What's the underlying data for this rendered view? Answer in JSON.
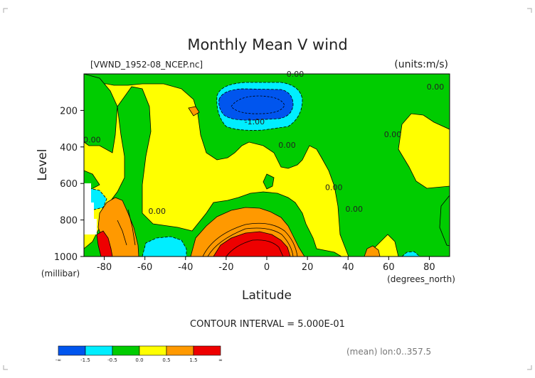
{
  "chart_data": {
    "type": "contour",
    "title": "Monthly Mean V wind",
    "dataset": "[VWND_1952-08_NCEP.nc]",
    "units": "(units:m/s)",
    "xlabel": "Latitude",
    "xunits": "(degrees_north)",
    "ylabel": "Level",
    "yunits": "(millibar)",
    "xlim": [
      -90,
      90
    ],
    "ylim": [
      1000,
      0
    ],
    "x_ticks": [
      -80,
      -60,
      -40,
      -20,
      0,
      20,
      40,
      60,
      80
    ],
    "y_ticks": [
      200,
      400,
      600,
      800,
      1000
    ],
    "contour_interval_text": "CONTOUR INTERVAL = 5.000E-01",
    "mean_text": "(mean) lon:0..357.5",
    "contour_labels": [
      {
        "text": "0.00",
        "lat": 14,
        "level": 0
      },
      {
        "text": "0.00",
        "lat": 83,
        "level": 70
      },
      {
        "text": "0.00",
        "lat": -86,
        "level": 360
      },
      {
        "text": "0.00",
        "lat": 10,
        "level": 390
      },
      {
        "text": "0.00",
        "lat": 62,
        "level": 330
      },
      {
        "text": "0.00",
        "lat": 33,
        "level": 620
      },
      {
        "text": "0.00",
        "lat": 43,
        "level": 740
      },
      {
        "text": "0.00",
        "lat": -54,
        "level": 750
      },
      {
        "text": "-1.00",
        "lat": -6,
        "level": 260
      }
    ],
    "colorbar": {
      "colors": [
        "#0055ee",
        "#00eeff",
        "#00cc00",
        "#ffff00",
        "#ff9900",
        "#ee0000"
      ],
      "labels": [
        "-∞",
        "-1.5",
        "-0.5",
        "0.0",
        "0.5",
        "1.5",
        "∞"
      ]
    }
  }
}
